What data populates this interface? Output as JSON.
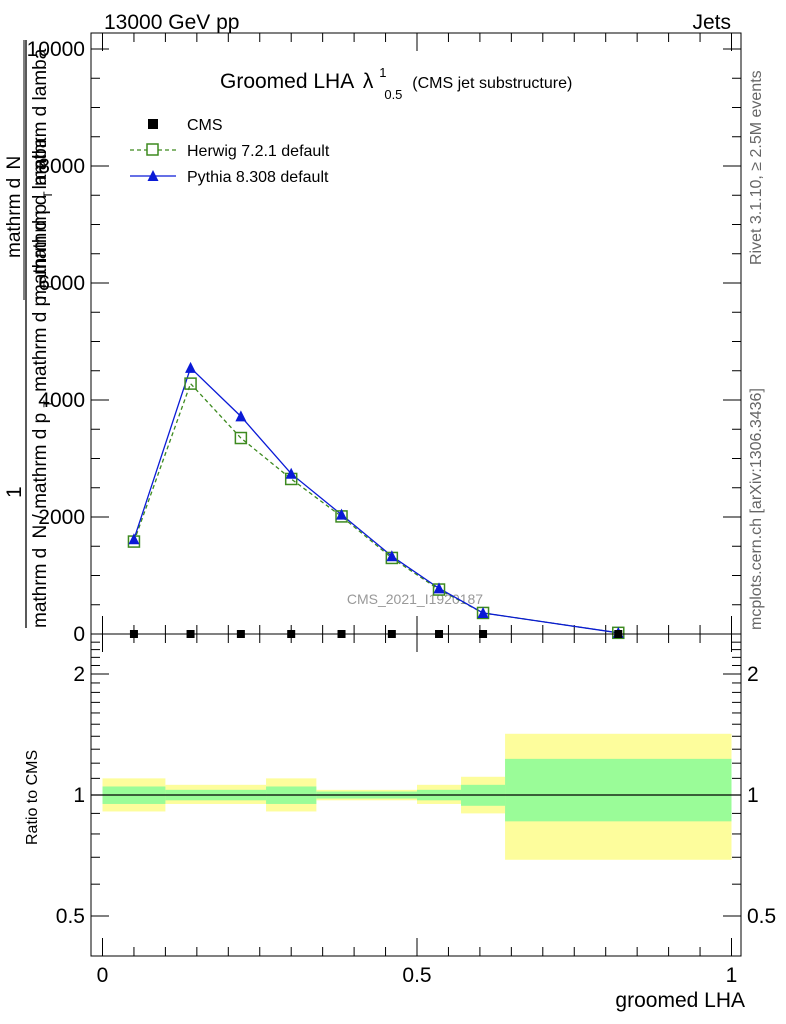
{
  "header": {
    "energy_label": "13000 GeV pp",
    "process_label": "Jets"
  },
  "side_labels": {
    "rivet": "Rivet 3.1.10, ≥ 2.5M events",
    "mcplots": "mcplots.cern.ch [arXiv:1306.3436]"
  },
  "title": {
    "main": "Groomed LHA",
    "lambda": "λ",
    "superscript": "1",
    "subscript": "0.5",
    "suffix": "(CMS jet substructure)"
  },
  "watermark": "CMS_2021_I1920187",
  "main_ylabel": {
    "numerator_1": "1",
    "numerator_2": "mathrm d",
    "numerator_3": "N",
    "denominator_1": "mathrm d",
    "denominator_2": "N / mathrm d p",
    "denominator_3": "T",
    "denominator_4": "mathrm d p",
    "denominator_5": "T",
    "denominator_6": "mathrm d lamba",
    "frac_top_a": "mathrm d",
    "frac_top_b": "N",
    "frac_bot_a": "mathrm d p",
    "frac_bot_b": "T",
    "frac_bot_c": " mathrm d lamba"
  },
  "ratio_ylabel": "Ratio to CMS",
  "xlabel": "groomed LHA",
  "chart_data": [
    {
      "type": "line",
      "title": "Groomed LHA λ^1_0.5 (CMS jet substructure)",
      "ylim": [
        0,
        10200
      ],
      "xlim": [
        -0.02,
        1.0
      ],
      "y_ticks": [
        0,
        2000,
        4000,
        6000,
        8000,
        10000
      ],
      "y_tick_labels": [
        "0",
        "2000",
        "4000",
        "6000",
        "8000",
        "10000"
      ],
      "legend_position": "top-left",
      "series": [
        {
          "name": "CMS",
          "style": "square-marker",
          "color": "#000000",
          "x": [
            0.05,
            0.14,
            0.22,
            0.3,
            0.38,
            0.46,
            0.535,
            0.605,
            0.82
          ],
          "y": [
            0,
            0,
            0,
            0,
            0,
            0,
            0,
            0,
            0
          ]
        },
        {
          "name": "Herwig 7.2.1 default",
          "style": "dashed-open-square",
          "color": "#3d8a1f",
          "x": [
            0.05,
            0.14,
            0.22,
            0.3,
            0.38,
            0.46,
            0.535,
            0.605,
            0.82
          ],
          "y": [
            1580,
            4280,
            3350,
            2650,
            2010,
            1300,
            760,
            360,
            20
          ]
        },
        {
          "name": "Pythia 8.308 default",
          "style": "solid-filled-triangle",
          "color": "#0a1ad6",
          "x": [
            0.05,
            0.14,
            0.22,
            0.3,
            0.38,
            0.46,
            0.535,
            0.605,
            0.82
          ],
          "y": [
            1620,
            4550,
            3720,
            2740,
            2040,
            1330,
            780,
            360,
            20
          ]
        }
      ]
    },
    {
      "type": "area",
      "title": "",
      "ylabel": "Ratio to CMS",
      "xlabel": "groomed LHA",
      "log_y": true,
      "ylim": [
        0.4,
        2.5
      ],
      "xlim": [
        -0.02,
        1.0
      ],
      "y_ticks": [
        0.5,
        1,
        2
      ],
      "y_tick_labels": [
        "0.5",
        "1",
        "2"
      ],
      "x_ticks": [
        0,
        0.5,
        1
      ],
      "x_tick_labels": [
        "0",
        "0.5",
        "1"
      ],
      "reference_line": 1,
      "bins": [
        {
          "lo": 0.0,
          "hi": 0.1,
          "stat_lo": 0.95,
          "stat_hi": 1.05,
          "tot_lo": 0.91,
          "tot_hi": 1.1
        },
        {
          "lo": 0.1,
          "hi": 0.26,
          "stat_lo": 0.97,
          "stat_hi": 1.03,
          "tot_lo": 0.95,
          "tot_hi": 1.06
        },
        {
          "lo": 0.26,
          "hi": 0.34,
          "stat_lo": 0.95,
          "stat_hi": 1.05,
          "tot_lo": 0.91,
          "tot_hi": 1.1
        },
        {
          "lo": 0.34,
          "hi": 0.5,
          "stat_lo": 0.98,
          "stat_hi": 1.02,
          "tot_lo": 0.97,
          "tot_hi": 1.03
        },
        {
          "lo": 0.5,
          "hi": 0.57,
          "stat_lo": 0.97,
          "stat_hi": 1.03,
          "tot_lo": 0.95,
          "tot_hi": 1.06
        },
        {
          "lo": 0.57,
          "hi": 0.64,
          "stat_lo": 0.94,
          "stat_hi": 1.06,
          "tot_lo": 0.9,
          "tot_hi": 1.11
        },
        {
          "lo": 0.64,
          "hi": 1.0,
          "stat_lo": 0.86,
          "stat_hi": 1.23,
          "tot_lo": 0.69,
          "tot_hi": 1.42
        }
      ],
      "colors": {
        "stat_band": "#9afc98",
        "total_band": "#fdfd9c"
      }
    }
  ]
}
